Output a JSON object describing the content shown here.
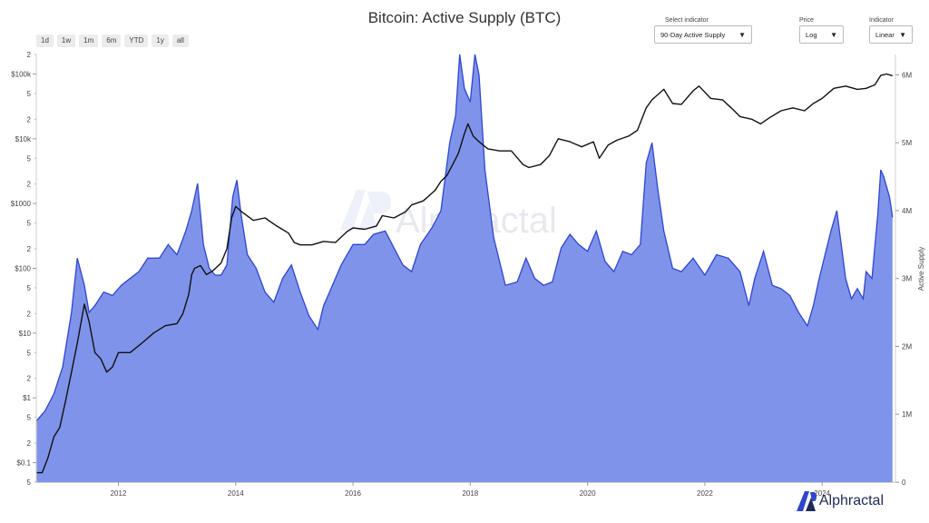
{
  "header": {
    "title": "Bitcoin: Active Supply (BTC)"
  },
  "range_buttons": [
    "1d",
    "1w",
    "1m",
    "6m",
    "YTD",
    "1y",
    "all"
  ],
  "controls": {
    "indicator": {
      "label": "Select indicator",
      "value": "90-Day Active Supply"
    },
    "price": {
      "label": "Price",
      "value": "Log"
    },
    "indicator_scale": {
      "label": "Indicator",
      "value": "Linear"
    }
  },
  "watermark": "Alphractal",
  "brand": "Alphractal",
  "colors": {
    "area_fill": "#7f93ea",
    "area_line": "#2f45cf",
    "price_line": "#111111"
  },
  "chart_data": {
    "type": "area",
    "title": "Bitcoin: Active Supply (BTC)",
    "xlabel": "",
    "x_ticks": [
      "2012",
      "2014",
      "2016",
      "2018",
      "2020",
      "2022",
      "2024"
    ],
    "xlim": [
      2010.6,
      2025.25
    ],
    "y_left": {
      "label": "",
      "scale": "log",
      "range": [
        0.05,
        200000
      ],
      "major_ticks": [
        {
          "value": 100000,
          "label": "$100k"
        },
        {
          "value": 10000,
          "label": "$10k"
        },
        {
          "value": 1000,
          "label": "$1000"
        },
        {
          "value": 100,
          "label": "$100"
        },
        {
          "value": 10,
          "label": "$10"
        },
        {
          "value": 1,
          "label": "$1"
        },
        {
          "value": 0.1,
          "label": "$0.1"
        }
      ],
      "minor_ticks": [
        {
          "value": 200000,
          "label": "2"
        },
        {
          "value": 50000,
          "label": "5"
        },
        {
          "value": 20000,
          "label": "2"
        },
        {
          "value": 5000,
          "label": "5"
        },
        {
          "value": 2000,
          "label": "2"
        },
        {
          "value": 500,
          "label": "5"
        },
        {
          "value": 200,
          "label": "2"
        },
        {
          "value": 50,
          "label": "5"
        },
        {
          "value": 20,
          "label": "2"
        },
        {
          "value": 5,
          "label": "5"
        },
        {
          "value": 2,
          "label": "2"
        },
        {
          "value": 0.5,
          "label": "5"
        },
        {
          "value": 0.2,
          "label": "2"
        },
        {
          "value": 0.05,
          "label": "5"
        }
      ]
    },
    "y_right": {
      "label": "Active Supply",
      "range": [
        0,
        6300000
      ],
      "ticks": [
        {
          "value": 0,
          "label": "0"
        },
        {
          "value": 1000000,
          "label": "1M"
        },
        {
          "value": 2000000,
          "label": "2M"
        },
        {
          "value": 3000000,
          "label": "3M"
        },
        {
          "value": 4000000,
          "label": "4M"
        },
        {
          "value": 5000000,
          "label": "5M"
        },
        {
          "value": 6000000,
          "label": "6M"
        }
      ]
    },
    "series": [
      {
        "name": "90-Day Active Supply",
        "axis": "right",
        "kind": "area",
        "x": [
          2010.6,
          2010.75,
          2010.9,
          2011.05,
          2011.2,
          2011.3,
          2011.42,
          2011.5,
          2011.6,
          2011.75,
          2011.9,
          2012.05,
          2012.2,
          2012.35,
          2012.5,
          2012.7,
          2012.85,
          2013.0,
          2013.15,
          2013.25,
          2013.35,
          2013.45,
          2013.55,
          2013.65,
          2013.75,
          2013.85,
          2013.95,
          2014.02,
          2014.1,
          2014.2,
          2014.35,
          2014.5,
          2014.65,
          2014.8,
          2014.95,
          2015.1,
          2015.25,
          2015.4,
          2015.5,
          2015.6,
          2015.8,
          2016.0,
          2016.2,
          2016.35,
          2016.55,
          2016.7,
          2016.85,
          2017.0,
          2017.15,
          2017.35,
          2017.5,
          2017.65,
          2017.75,
          2017.82,
          2017.9,
          2018.0,
          2018.08,
          2018.15,
          2018.25,
          2018.4,
          2018.6,
          2018.8,
          2018.95,
          2019.1,
          2019.25,
          2019.4,
          2019.55,
          2019.7,
          2019.85,
          2020.0,
          2020.15,
          2020.3,
          2020.45,
          2020.6,
          2020.75,
          2020.9,
          2021.0,
          2021.1,
          2021.2,
          2021.3,
          2021.45,
          2021.6,
          2021.8,
          2022.0,
          2022.2,
          2022.4,
          2022.6,
          2022.75,
          2022.85,
          2023.0,
          2023.15,
          2023.3,
          2023.45,
          2023.6,
          2023.75,
          2023.85,
          2023.95,
          2024.05,
          2024.15,
          2024.25,
          2024.4,
          2024.5,
          2024.6,
          2024.7,
          2024.75,
          2024.85,
          2024.95,
          2025.0,
          2025.05,
          2025.1,
          2025.15,
          2025.2
        ],
        "y": [
          900000,
          1050000,
          1300000,
          1700000,
          2500000,
          3300000,
          2900000,
          2500000,
          2600000,
          2800000,
          2750000,
          2900000,
          3000000,
          3100000,
          3300000,
          3300000,
          3500000,
          3350000,
          3700000,
          4000000,
          4400000,
          3500000,
          3150000,
          3050000,
          3050000,
          3200000,
          4200000,
          4450000,
          3900000,
          3350000,
          3150000,
          2800000,
          2650000,
          3000000,
          3200000,
          2800000,
          2450000,
          2250000,
          2600000,
          2800000,
          3200000,
          3500000,
          3500000,
          3650000,
          3700000,
          3450000,
          3200000,
          3100000,
          3500000,
          3750000,
          4000000,
          5000000,
          5400000,
          6300000,
          5800000,
          5600000,
          6300000,
          6000000,
          4600000,
          3600000,
          2900000,
          2950000,
          3300000,
          3000000,
          2900000,
          2950000,
          3450000,
          3650000,
          3500000,
          3400000,
          3700000,
          3250000,
          3100000,
          3400000,
          3350000,
          3500000,
          4700000,
          5000000,
          4300000,
          3700000,
          3150000,
          3100000,
          3300000,
          3050000,
          3350000,
          3300000,
          3100000,
          2600000,
          3000000,
          3400000,
          2900000,
          2850000,
          2750000,
          2500000,
          2300000,
          2600000,
          3000000,
          3350000,
          3700000,
          4000000,
          3000000,
          2700000,
          2850000,
          2700000,
          3100000,
          3000000,
          3950000,
          4600000,
          4500000,
          4350000,
          4200000,
          3900000
        ]
      },
      {
        "name": "Price (USD)",
        "axis": "left",
        "kind": "line",
        "x": [
          2010.6,
          2010.7,
          2010.8,
          2010.9,
          2011.0,
          2011.1,
          2011.2,
          2011.3,
          2011.42,
          2011.5,
          2011.6,
          2011.7,
          2011.8,
          2011.9,
          2012.0,
          2012.2,
          2012.4,
          2012.6,
          2012.8,
          2013.0,
          2013.1,
          2013.2,
          2013.25,
          2013.3,
          2013.4,
          2013.5,
          2013.6,
          2013.75,
          2013.85,
          2013.93,
          2014.0,
          2014.1,
          2014.3,
          2014.5,
          2014.7,
          2014.9,
          2015.0,
          2015.1,
          2015.3,
          2015.5,
          2015.7,
          2015.9,
          2016.0,
          2016.2,
          2016.4,
          2016.5,
          2016.7,
          2016.9,
          2017.0,
          2017.2,
          2017.4,
          2017.5,
          2017.6,
          2017.7,
          2017.8,
          2017.9,
          2017.96,
          2018.05,
          2018.15,
          2018.3,
          2018.5,
          2018.7,
          2018.9,
          2019.0,
          2019.2,
          2019.35,
          2019.5,
          2019.7,
          2019.9,
          2020.1,
          2020.2,
          2020.35,
          2020.5,
          2020.7,
          2020.85,
          2021.0,
          2021.1,
          2021.3,
          2021.45,
          2021.6,
          2021.8,
          2021.9,
          2022.1,
          2022.3,
          2022.45,
          2022.6,
          2022.8,
          2022.95,
          2023.1,
          2023.3,
          2023.5,
          2023.7,
          2023.85,
          2024.0,
          2024.2,
          2024.4,
          2024.6,
          2024.75,
          2024.9,
          2025.0,
          2025.1,
          2025.2
        ],
        "y": [
          0.07,
          0.07,
          0.12,
          0.25,
          0.35,
          0.9,
          2.5,
          7,
          28,
          15,
          5,
          4,
          2.5,
          3,
          5,
          5,
          7,
          10,
          13,
          14,
          20,
          40,
          80,
          100,
          110,
          80,
          90,
          120,
          200,
          600,
          900,
          750,
          550,
          600,
          450,
          350,
          250,
          230,
          230,
          260,
          250,
          370,
          420,
          400,
          450,
          650,
          600,
          750,
          950,
          1100,
          1600,
          2200,
          2700,
          4000,
          6000,
          12000,
          17000,
          11000,
          9000,
          7000,
          6500,
          6500,
          4000,
          3600,
          4000,
          5500,
          10000,
          9000,
          7500,
          9000,
          5000,
          8000,
          9500,
          11000,
          13500,
          30000,
          40000,
          58000,
          35000,
          34000,
          55000,
          65000,
          42000,
          40000,
          30000,
          22000,
          20000,
          17000,
          21000,
          27000,
          30000,
          27000,
          35000,
          42000,
          60000,
          65000,
          58000,
          60000,
          68000,
          95000,
          100000,
          94000
        ]
      }
    ]
  }
}
